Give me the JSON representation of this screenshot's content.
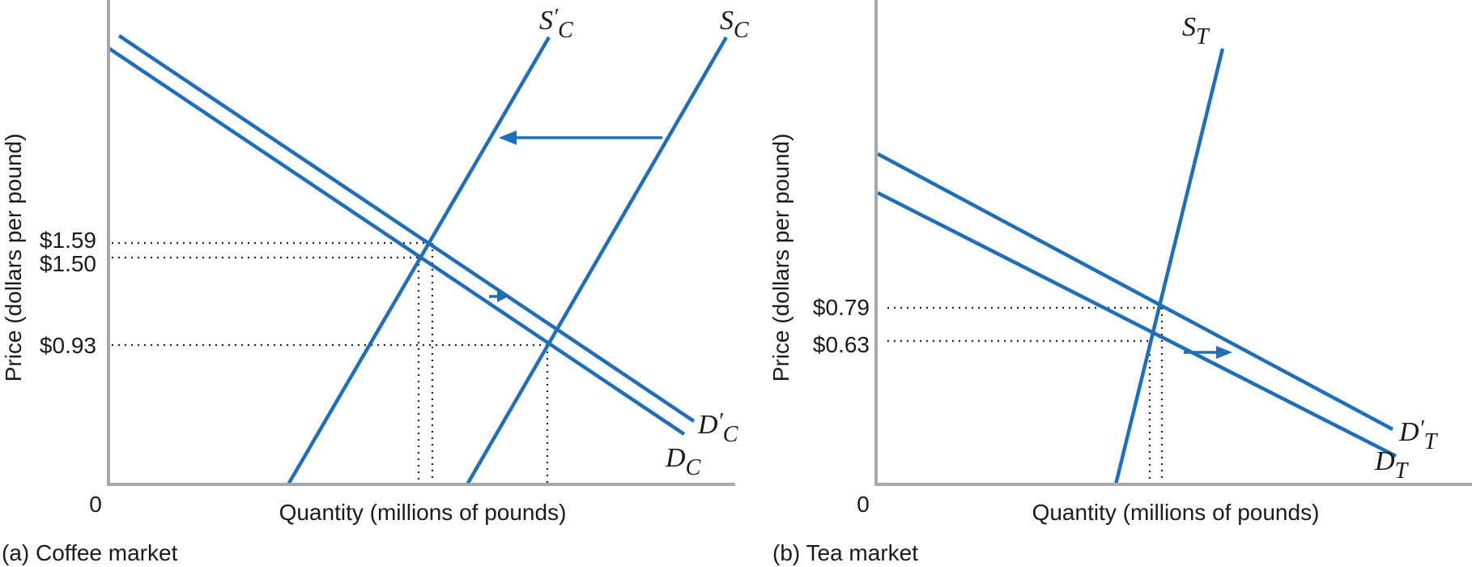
{
  "chart_data": [
    {
      "type": "line",
      "caption": "(a) Coffee market",
      "xlabel": "Quantity (millions of pounds)",
      "ylabel": "Price (dollars per pound)",
      "origin_label": "0",
      "y_ticks": [
        {
          "value": 1.59,
          "label": "$1.59"
        },
        {
          "value": 1.5,
          "label": "$1.50"
        },
        {
          "value": 0.93,
          "label": "$0.93"
        }
      ],
      "curves": [
        {
          "name": "S′C",
          "main": "S",
          "prime": "′",
          "sub": "C",
          "kind": "supply"
        },
        {
          "name": "SC",
          "main": "S",
          "prime": "",
          "sub": "C",
          "kind": "supply"
        },
        {
          "name": "D′C",
          "main": "D",
          "prime": "′",
          "sub": "C",
          "kind": "demand"
        },
        {
          "name": "DC",
          "main": "D",
          "prime": "",
          "sub": "C",
          "kind": "demand"
        }
      ],
      "equilibria": [
        {
          "price": 1.5,
          "label": "SC′ and DC"
        },
        {
          "price": 1.59,
          "label": "SC′ and D′C"
        },
        {
          "price": 0.93,
          "label": "SC and DC"
        }
      ],
      "shifts": [
        {
          "curve": "supply",
          "direction": "left"
        },
        {
          "curve": "demand",
          "direction": "right"
        }
      ]
    },
    {
      "type": "line",
      "caption": "(b) Tea market",
      "xlabel": "Quantity (millions of pounds)",
      "ylabel": "Price (dollars per pound)",
      "origin_label": "0",
      "y_ticks": [
        {
          "value": 0.79,
          "label": "$0.79"
        },
        {
          "value": 0.63,
          "label": "$0.63"
        }
      ],
      "curves": [
        {
          "name": "ST",
          "main": "S",
          "prime": "",
          "sub": "T",
          "kind": "supply"
        },
        {
          "name": "D′T",
          "main": "D",
          "prime": "′",
          "sub": "T",
          "kind": "demand"
        },
        {
          "name": "DT",
          "main": "D",
          "prime": "",
          "sub": "T",
          "kind": "demand"
        }
      ],
      "equilibria": [
        {
          "price": 0.63,
          "label": "ST and DT"
        },
        {
          "price": 0.79,
          "label": "ST and D′T"
        }
      ],
      "shifts": [
        {
          "curve": "demand",
          "direction": "right"
        }
      ]
    }
  ],
  "colors": {
    "curve": "#1f6eb6",
    "axis": "#a8a8a8"
  }
}
